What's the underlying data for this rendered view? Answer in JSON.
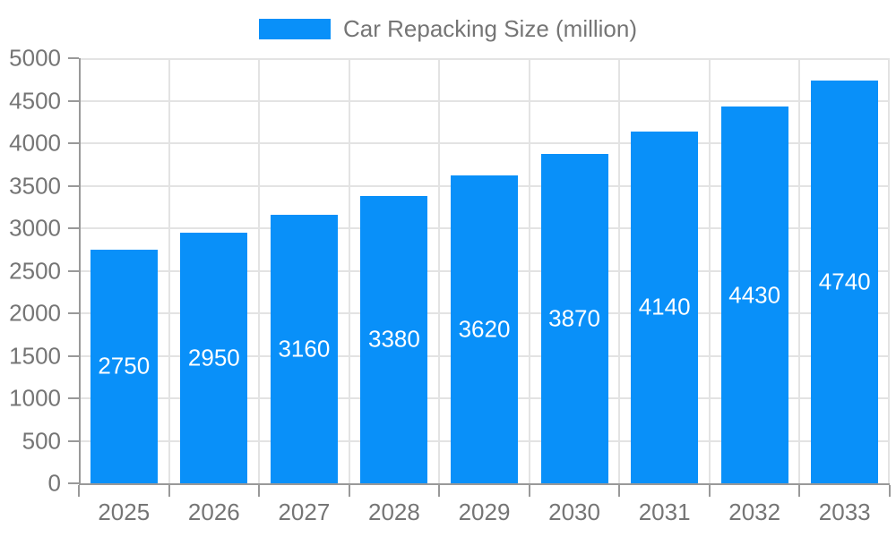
{
  "chart_data": {
    "type": "bar",
    "title": "Car Repacking Size (million)",
    "series_name": "Car Repacking Size (million)",
    "categories": [
      "2025",
      "2026",
      "2027",
      "2028",
      "2029",
      "2030",
      "2031",
      "2032",
      "2033"
    ],
    "values": [
      2750,
      2950,
      3160,
      3380,
      3620,
      3870,
      4140,
      4430,
      4740
    ],
    "xlabel": "",
    "ylabel": "",
    "ylim": [
      0,
      5000
    ],
    "yticks": [
      0,
      500,
      1000,
      1500,
      2000,
      2500,
      3000,
      3500,
      4000,
      4500,
      5000
    ],
    "grid": true,
    "legend_position": "top-center",
    "value_labels": "inside-center",
    "colors": {
      "bar": "#0990f9",
      "grid": "#e3e3e3",
      "axis": "#999999",
      "text": "#757575",
      "value_label": "#ffffff",
      "background": "#ffffff"
    }
  }
}
